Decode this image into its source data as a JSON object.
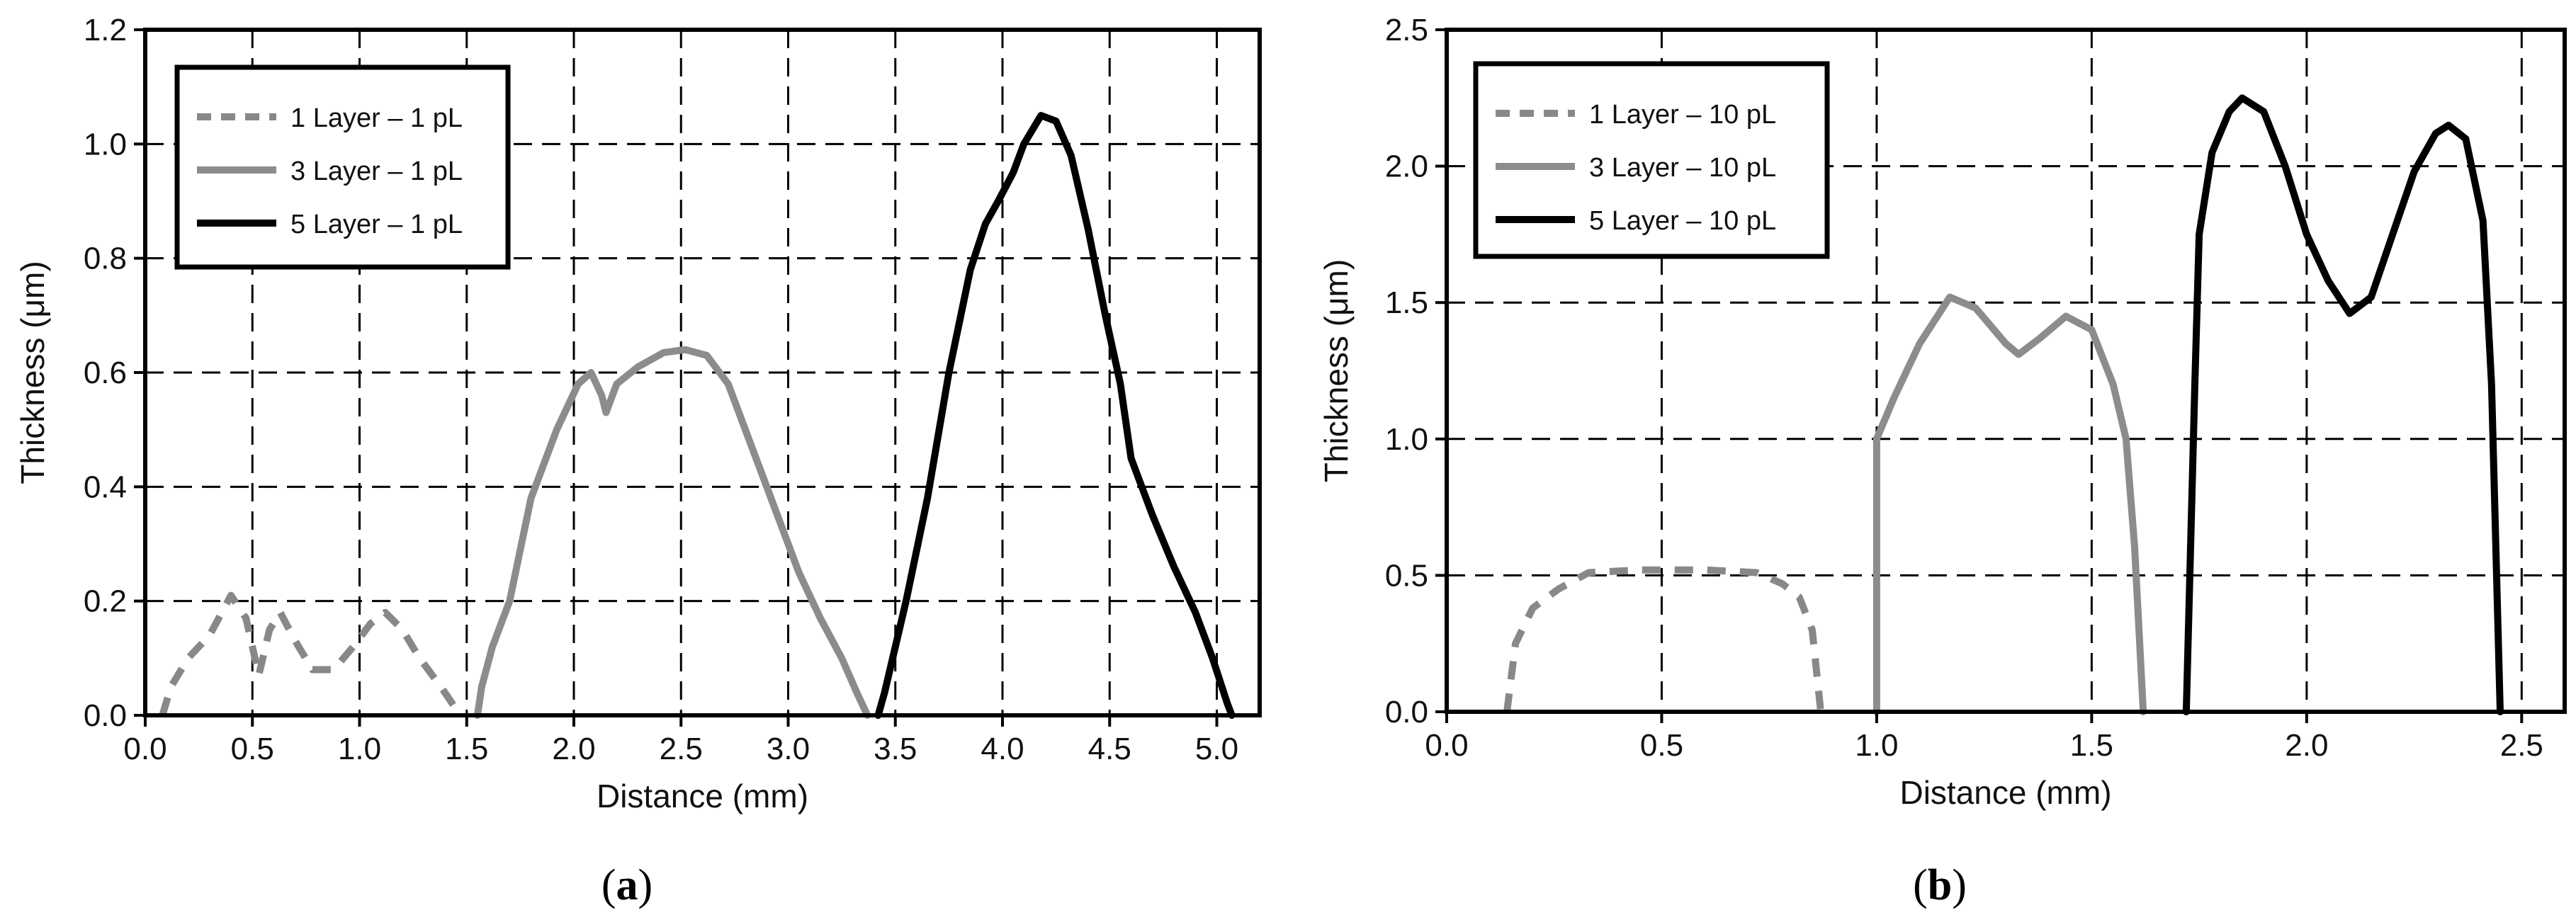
{
  "chart_data": [
    {
      "type": "line",
      "panel_label_text": "(a)",
      "panel_label_letter": "a",
      "xlabel": "Distance (mm)",
      "ylabel": "Thickness (μm)",
      "xlim": [
        0,
        5.2
      ],
      "ylim": [
        0,
        1.2
      ],
      "xticks": [
        0.0,
        0.5,
        1.0,
        1.5,
        2.0,
        2.5,
        3.0,
        3.5,
        4.0,
        4.5,
        5.0
      ],
      "xtick_labels": [
        "0.0",
        "0.5",
        "1.0",
        "1.5",
        "2.0",
        "2.5",
        "3.0",
        "3.5",
        "4.0",
        "4.5",
        "5.0"
      ],
      "yticks": [
        0.0,
        0.2,
        0.4,
        0.6,
        0.8,
        1.0,
        1.2
      ],
      "ytick_labels": [
        "0.0",
        "0.2",
        "0.4",
        "0.6",
        "0.8",
        "1.0",
        "1.2"
      ],
      "grid": true,
      "legend_position": "top-left",
      "series": [
        {
          "name": "1 Layer – 1 pL",
          "color": "#888888",
          "style": "dashed",
          "points": [
            [
              0.08,
              0.0
            ],
            [
              0.12,
              0.05
            ],
            [
              0.2,
              0.1
            ],
            [
              0.3,
              0.14
            ],
            [
              0.4,
              0.21
            ],
            [
              0.47,
              0.17
            ],
            [
              0.53,
              0.07
            ],
            [
              0.58,
              0.15
            ],
            [
              0.63,
              0.18
            ],
            [
              0.7,
              0.13
            ],
            [
              0.78,
              0.08
            ],
            [
              0.88,
              0.08
            ],
            [
              0.97,
              0.12
            ],
            [
              1.05,
              0.16
            ],
            [
              1.12,
              0.18
            ],
            [
              1.2,
              0.15
            ],
            [
              1.28,
              0.1
            ],
            [
              1.38,
              0.05
            ],
            [
              1.47,
              0.0
            ]
          ]
        },
        {
          "name": "3 Layer – 1 pL",
          "color": "#8c8c8c",
          "style": "solid",
          "points": [
            [
              1.55,
              0.0
            ],
            [
              1.57,
              0.05
            ],
            [
              1.62,
              0.12
            ],
            [
              1.7,
              0.2
            ],
            [
              1.8,
              0.38
            ],
            [
              1.92,
              0.5
            ],
            [
              2.02,
              0.58
            ],
            [
              2.08,
              0.6
            ],
            [
              2.13,
              0.56
            ],
            [
              2.15,
              0.53
            ],
            [
              2.2,
              0.58
            ],
            [
              2.3,
              0.61
            ],
            [
              2.42,
              0.635
            ],
            [
              2.52,
              0.64
            ],
            [
              2.62,
              0.63
            ],
            [
              2.72,
              0.58
            ],
            [
              2.85,
              0.45
            ],
            [
              2.95,
              0.35
            ],
            [
              3.05,
              0.25
            ],
            [
              3.15,
              0.17
            ],
            [
              3.25,
              0.1
            ],
            [
              3.32,
              0.04
            ],
            [
              3.37,
              0.0
            ]
          ]
        },
        {
          "name": "5 Layer – 1 pL",
          "color": "#000000",
          "style": "solid",
          "points": [
            [
              3.42,
              0.0
            ],
            [
              3.45,
              0.04
            ],
            [
              3.55,
              0.2
            ],
            [
              3.65,
              0.38
            ],
            [
              3.75,
              0.6
            ],
            [
              3.85,
              0.78
            ],
            [
              3.92,
              0.86
            ],
            [
              3.98,
              0.9
            ],
            [
              4.05,
              0.95
            ],
            [
              4.1,
              1.0
            ],
            [
              4.18,
              1.05
            ],
            [
              4.25,
              1.04
            ],
            [
              4.32,
              0.98
            ],
            [
              4.4,
              0.85
            ],
            [
              4.48,
              0.7
            ],
            [
              4.55,
              0.58
            ],
            [
              4.6,
              0.45
            ],
            [
              4.7,
              0.35
            ],
            [
              4.8,
              0.26
            ],
            [
              4.9,
              0.18
            ],
            [
              4.98,
              0.1
            ],
            [
              5.05,
              0.02
            ],
            [
              5.07,
              0.0
            ]
          ]
        }
      ]
    },
    {
      "type": "line",
      "panel_label_text": "(b)",
      "panel_label_letter": "b",
      "xlabel": "Distance (mm)",
      "ylabel": "Thickness (μm)",
      "xlim": [
        0,
        2.6
      ],
      "ylim": [
        0,
        2.5
      ],
      "xticks": [
        0.0,
        0.5,
        1.0,
        1.5,
        2.0,
        2.5
      ],
      "xtick_labels": [
        "0.0",
        "0.5",
        "1.0",
        "1.5",
        "2.0",
        "2.5"
      ],
      "yticks": [
        0.0,
        0.5,
        1.0,
        1.5,
        2.0,
        2.5
      ],
      "ytick_labels": [
        "0.0",
        "0.5",
        "1.0",
        "1.5",
        "2.0",
        "2.5"
      ],
      "grid": true,
      "legend_position": "top-left",
      "series": [
        {
          "name": "1 Layer – 10 pL",
          "color": "#888888",
          "style": "dashed",
          "points": [
            [
              0.14,
              0.0
            ],
            [
              0.16,
              0.25
            ],
            [
              0.2,
              0.38
            ],
            [
              0.26,
              0.45
            ],
            [
              0.33,
              0.51
            ],
            [
              0.45,
              0.52
            ],
            [
              0.6,
              0.52
            ],
            [
              0.72,
              0.51
            ],
            [
              0.78,
              0.47
            ],
            [
              0.82,
              0.42
            ],
            [
              0.85,
              0.3
            ],
            [
              0.87,
              0.0
            ]
          ]
        },
        {
          "name": "3 Layer – 10 pL",
          "color": "#8c8c8c",
          "style": "solid",
          "points": [
            [
              1.0,
              0.0
            ],
            [
              1.0,
              1.0
            ],
            [
              1.04,
              1.15
            ],
            [
              1.1,
              1.35
            ],
            [
              1.17,
              1.52
            ],
            [
              1.23,
              1.48
            ],
            [
              1.3,
              1.35
            ],
            [
              1.33,
              1.31
            ],
            [
              1.38,
              1.37
            ],
            [
              1.44,
              1.45
            ],
            [
              1.5,
              1.4
            ],
            [
              1.55,
              1.2
            ],
            [
              1.58,
              1.0
            ],
            [
              1.6,
              0.6
            ],
            [
              1.62,
              0.0
            ]
          ]
        },
        {
          "name": "5 Layer – 10 pL",
          "color": "#000000",
          "style": "solid",
          "points": [
            [
              1.72,
              0.0
            ],
            [
              1.74,
              1.2
            ],
            [
              1.75,
              1.75
            ],
            [
              1.78,
              2.05
            ],
            [
              1.82,
              2.2
            ],
            [
              1.85,
              2.25
            ],
            [
              1.9,
              2.2
            ],
            [
              1.95,
              2.0
            ],
            [
              2.0,
              1.75
            ],
            [
              2.05,
              1.58
            ],
            [
              2.1,
              1.46
            ],
            [
              2.15,
              1.52
            ],
            [
              2.2,
              1.75
            ],
            [
              2.25,
              1.98
            ],
            [
              2.3,
              2.12
            ],
            [
              2.33,
              2.15
            ],
            [
              2.37,
              2.1
            ],
            [
              2.41,
              1.8
            ],
            [
              2.43,
              1.2
            ],
            [
              2.45,
              0.0
            ]
          ]
        }
      ]
    }
  ]
}
